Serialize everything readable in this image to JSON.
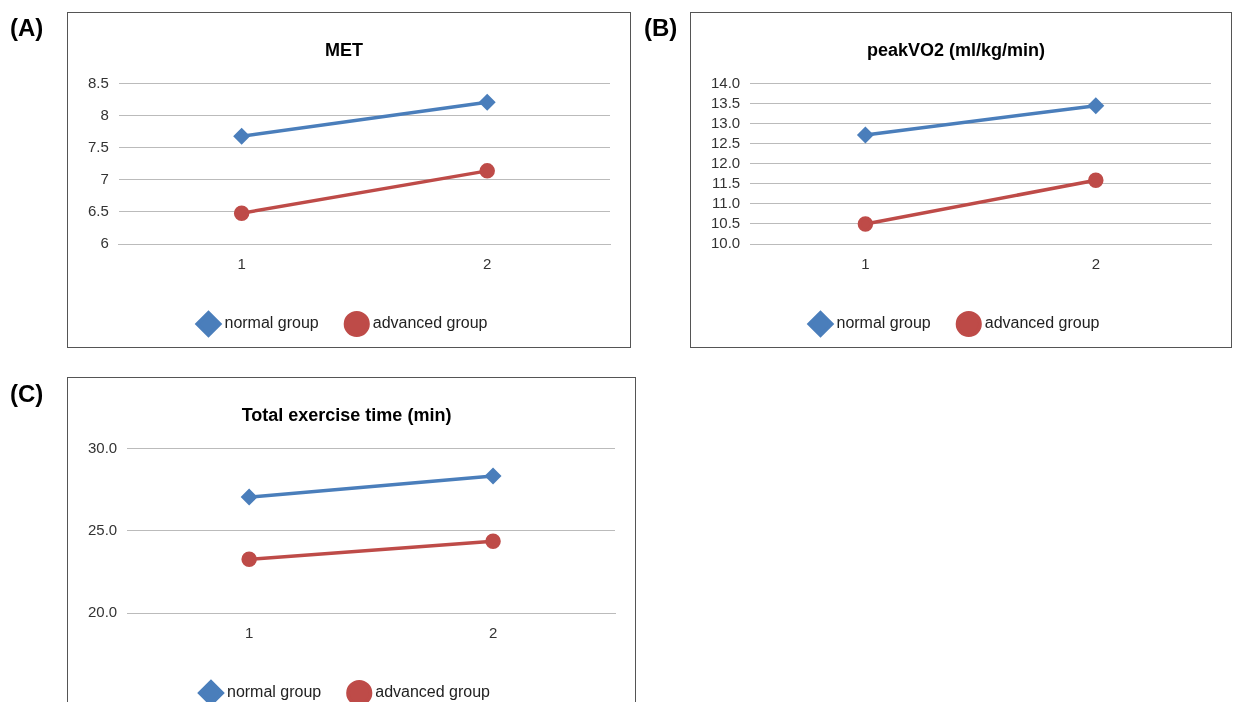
{
  "chart_data": [
    {
      "type": "line",
      "title": "MET",
      "annotations": [
        "(A)"
      ],
      "categories": [
        "1",
        "2"
      ],
      "series": [
        {
          "name": "normal group",
          "color": "#4a7ebb",
          "marker": "diamond",
          "values": [
            7.68,
            8.21
          ]
        },
        {
          "name": "advanced group",
          "color": "#be4b48",
          "marker": "circle",
          "values": [
            6.48,
            7.14
          ]
        }
      ],
      "ylim": [
        6,
        8.5
      ],
      "yticks": [
        6,
        6.5,
        7,
        7.5,
        8,
        8.5
      ],
      "grid": "y",
      "legend": "bottom"
    },
    {
      "type": "line",
      "title": "peakVO2 (ml/kg/min)",
      "annotations": [
        "(B)"
      ],
      "categories": [
        "1",
        "2"
      ],
      "series": [
        {
          "name": "normal group",
          "color": "#4a7ebb",
          "marker": "diamond",
          "values": [
            12.72,
            13.45
          ]
        },
        {
          "name": "advanced group",
          "color": "#be4b48",
          "marker": "circle",
          "values": [
            10.5,
            11.59
          ]
        }
      ],
      "ylim": [
        10,
        14
      ],
      "yticks": [
        {
          "value": 10,
          "label": "10.0"
        },
        {
          "value": 10.5,
          "label": "10.5"
        },
        {
          "value": 11,
          "label": "11.0"
        },
        {
          "value": 11.5,
          "label": "11.5"
        },
        {
          "value": 12,
          "label": "12.0"
        },
        {
          "value": 12.5,
          "label": "12.5"
        },
        {
          "value": 13,
          "label": "13.0"
        },
        {
          "value": 13.5,
          "label": "13.5"
        },
        {
          "value": 14,
          "label": "14.0"
        }
      ],
      "grid": "y",
      "legend": "bottom"
    },
    {
      "type": "line",
      "title": "Total exercise time (min)",
      "annotations": [
        "(C)"
      ],
      "categories": [
        "1",
        "2"
      ],
      "series": [
        {
          "name": "normal group",
          "color": "#4a7ebb",
          "marker": "diamond",
          "values": [
            27.05,
            28.33
          ]
        },
        {
          "name": "advanced group",
          "color": "#be4b48",
          "marker": "circle",
          "values": [
            23.27,
            24.36
          ]
        }
      ],
      "ylim": [
        20,
        30
      ],
      "yticks": [
        {
          "value": 20,
          "label": "20.0"
        },
        {
          "value": 25,
          "label": "25.0"
        },
        {
          "value": 30,
          "label": "30.0"
        }
      ],
      "grid": "y",
      "legend": "bottom"
    }
  ]
}
